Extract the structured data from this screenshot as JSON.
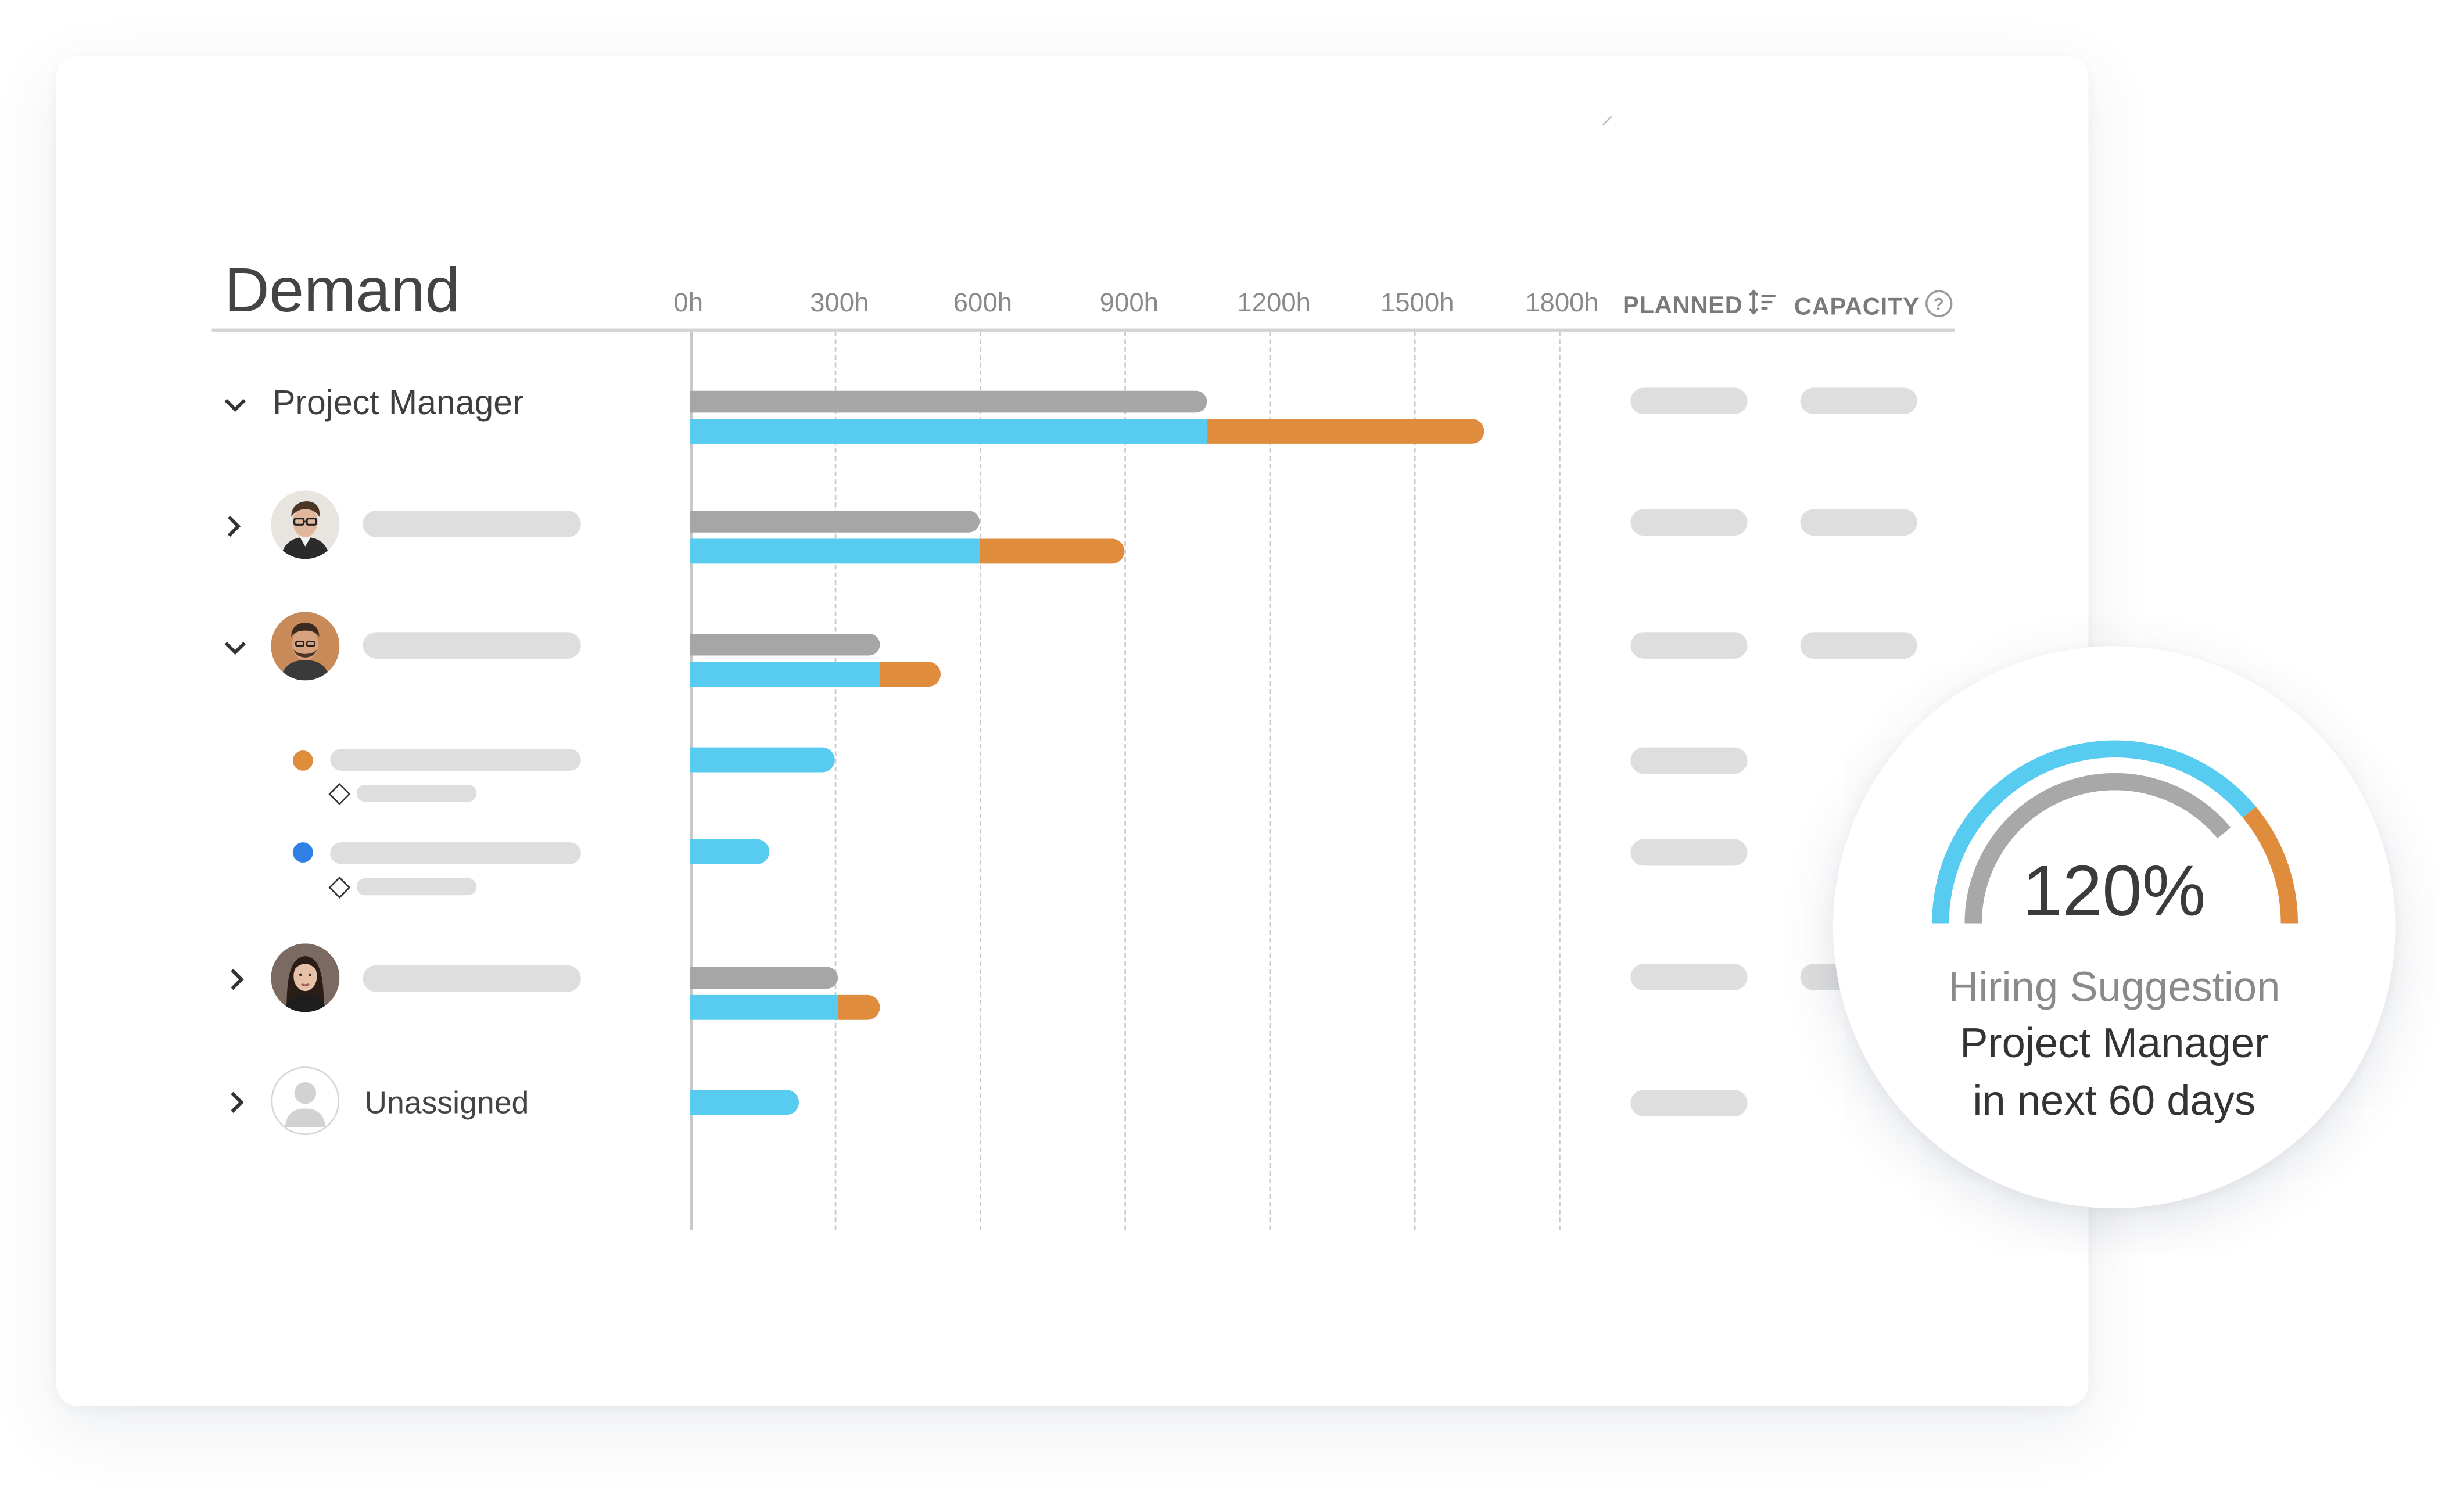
{
  "panel": {
    "title": "Demand",
    "axis_ticks": [
      "0h",
      "300h",
      "600h",
      "900h",
      "1200h",
      "1500h",
      "1800h"
    ],
    "columns": {
      "planned": "PLANNED",
      "capacity": "CAPACITY"
    }
  },
  "chart_data": {
    "type": "bar",
    "orientation": "horizontal",
    "categories": [
      "Project Manager",
      "",
      "",
      "",
      "",
      "",
      "Unassigned"
    ],
    "x_ticks": [
      "0h",
      "300h",
      "600h",
      "900h",
      "1200h",
      "1500h",
      "1800h"
    ],
    "xlim": [
      0,
      1800
    ],
    "grid": true,
    "series": [
      {
        "color": "#a6a6a6",
        "values": [
          1070,
          600,
          395,
          null,
          null,
          305,
          null
        ]
      },
      {
        "color": "#57ccf0",
        "values": [
          1070,
          600,
          395,
          300,
          165,
          305,
          225
        ]
      },
      {
        "color": "#df8c3c",
        "values": [
          575,
          300,
          125,
          null,
          null,
          90,
          null
        ]
      }
    ]
  },
  "rows": [
    {
      "label": "Project Manager",
      "expanded": true
    },
    {
      "label": "",
      "expanded": false
    },
    {
      "label": "",
      "expanded": true
    },
    {
      "label": "",
      "dot_color": "#df8c3c"
    },
    {
      "label": "",
      "dot_color": "#2f7fe4"
    },
    {
      "label": "",
      "expanded": false
    },
    {
      "label": "Unassigned",
      "expanded": false
    }
  ],
  "hiring": {
    "gauge": {
      "value_pct": 120,
      "label": "120%"
    },
    "line1": "Hiring Suggestion",
    "line2": "Project Manager",
    "line3": "in next 60 days"
  },
  "colors": {
    "planned": "#a6a6a6",
    "demand": "#57ccf0",
    "overload": "#df8c3c"
  },
  "icons": [
    "chevron-down-icon",
    "chevron-right-icon",
    "sort-icon",
    "help-icon",
    "diamond-icon",
    "user-icon"
  ]
}
